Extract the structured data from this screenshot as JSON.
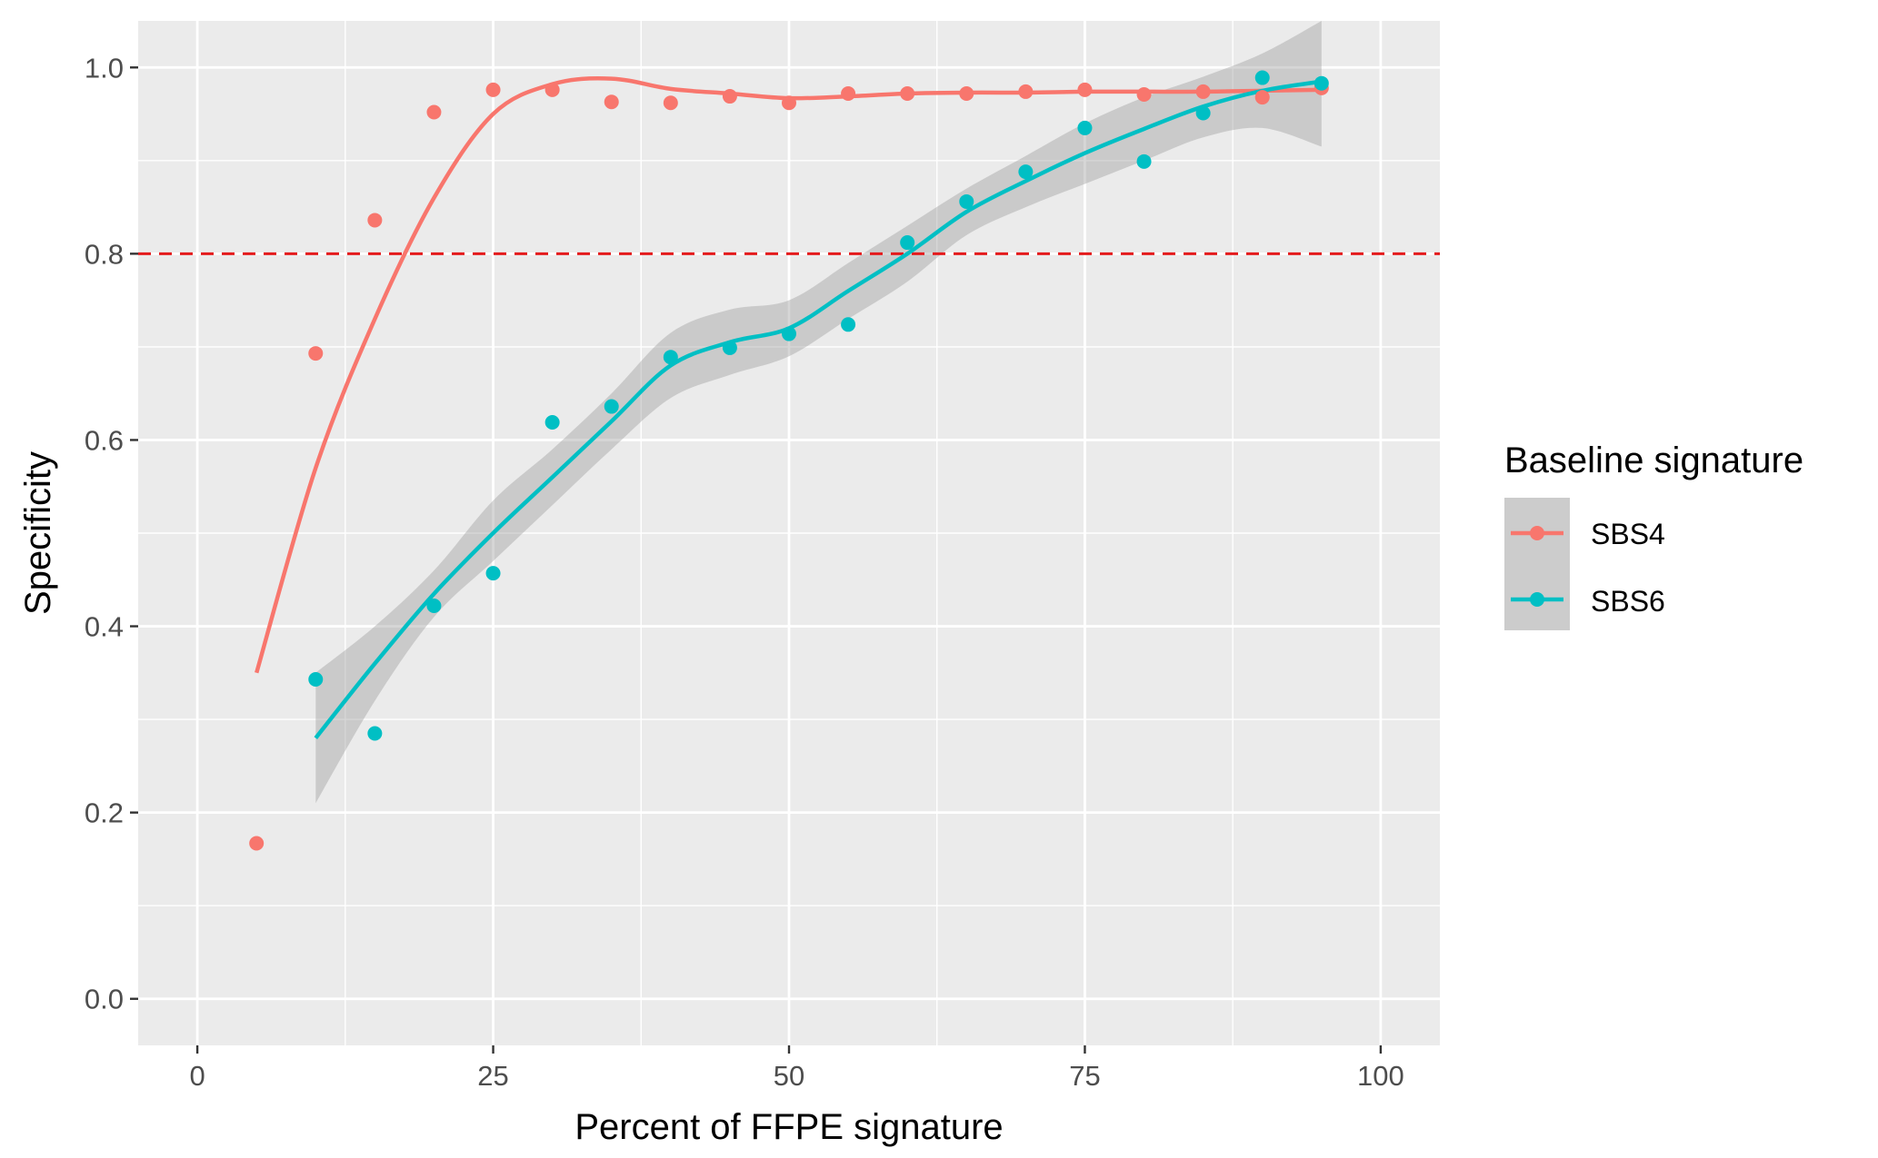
{
  "chart_data": {
    "type": "scatter",
    "xlabel": "Percent of FFPE signature",
    "ylabel": "Specificity",
    "xlim": [
      -5,
      105
    ],
    "ylim": [
      -0.05,
      1.05
    ],
    "x_ticks": [
      0,
      25,
      50,
      75,
      100
    ],
    "x_tick_labels": [
      "0",
      "25",
      "50",
      "75",
      "100"
    ],
    "y_ticks": [
      0.0,
      0.2,
      0.4,
      0.6,
      0.8,
      1.0
    ],
    "y_tick_labels": [
      "0.0",
      "0.2",
      "0.4",
      "0.6",
      "0.8",
      "1.0"
    ],
    "grid": true,
    "background": "#ebebeb",
    "reference_line": {
      "y": 0.8,
      "style": "dashed",
      "color": "#e41a1c"
    },
    "legend": {
      "title": "Baseline signature",
      "position": "right"
    },
    "series": [
      {
        "name": "SBS4",
        "color": "#f8766d",
        "points": [
          [
            5,
            0.167
          ],
          [
            10,
            0.693
          ],
          [
            15,
            0.836
          ],
          [
            20,
            0.952
          ],
          [
            25,
            0.976
          ],
          [
            30,
            0.976
          ],
          [
            35,
            0.963
          ],
          [
            40,
            0.962
          ],
          [
            45,
            0.969
          ],
          [
            50,
            0.962
          ],
          [
            55,
            0.972
          ],
          [
            60,
            0.972
          ],
          [
            65,
            0.972
          ],
          [
            70,
            0.974
          ],
          [
            75,
            0.976
          ],
          [
            80,
            0.971
          ],
          [
            85,
            0.974
          ],
          [
            90,
            0.968
          ],
          [
            95,
            0.978
          ]
        ],
        "smooth": [
          [
            5,
            0.35
          ],
          [
            10,
            0.57
          ],
          [
            15,
            0.73
          ],
          [
            20,
            0.86
          ],
          [
            25,
            0.95
          ],
          [
            30,
            0.982
          ],
          [
            35,
            0.988
          ],
          [
            40,
            0.977
          ],
          [
            45,
            0.972
          ],
          [
            50,
            0.967
          ],
          [
            55,
            0.969
          ],
          [
            60,
            0.972
          ],
          [
            65,
            0.973
          ],
          [
            70,
            0.973
          ],
          [
            75,
            0.974
          ],
          [
            80,
            0.974
          ],
          [
            85,
            0.974
          ],
          [
            90,
            0.975
          ],
          [
            95,
            0.976
          ]
        ]
      },
      {
        "name": "SBS6",
        "color": "#00bfc4",
        "points": [
          [
            10,
            0.343
          ],
          [
            15,
            0.285
          ],
          [
            20,
            0.422
          ],
          [
            25,
            0.457
          ],
          [
            30,
            0.619
          ],
          [
            35,
            0.636
          ],
          [
            40,
            0.689
          ],
          [
            45,
            0.699
          ],
          [
            50,
            0.714
          ],
          [
            55,
            0.724
          ],
          [
            60,
            0.812
          ],
          [
            65,
            0.856
          ],
          [
            70,
            0.888
          ],
          [
            75,
            0.935
          ],
          [
            80,
            0.899
          ],
          [
            85,
            0.951
          ],
          [
            90,
            0.989
          ],
          [
            95,
            0.983
          ]
        ],
        "smooth": [
          [
            10,
            0.28
          ],
          [
            15,
            0.36
          ],
          [
            20,
            0.435
          ],
          [
            25,
            0.5
          ],
          [
            30,
            0.56
          ],
          [
            35,
            0.62
          ],
          [
            40,
            0.68
          ],
          [
            45,
            0.705
          ],
          [
            50,
            0.72
          ],
          [
            55,
            0.76
          ],
          [
            60,
            0.8
          ],
          [
            65,
            0.845
          ],
          [
            70,
            0.878
          ],
          [
            75,
            0.908
          ],
          [
            80,
            0.934
          ],
          [
            85,
            0.958
          ],
          [
            90,
            0.975
          ],
          [
            95,
            0.985
          ]
        ],
        "band_lower": [
          0.21,
          0.32,
          0.41,
          0.47,
          0.53,
          0.59,
          0.645,
          0.67,
          0.69,
          0.73,
          0.77,
          0.82,
          0.85,
          0.875,
          0.9,
          0.925,
          0.935,
          0.915
        ],
        "band_upper": [
          0.35,
          0.4,
          0.46,
          0.535,
          0.59,
          0.65,
          0.715,
          0.74,
          0.75,
          0.79,
          0.83,
          0.87,
          0.905,
          0.94,
          0.968,
          0.99,
          1.015,
          1.05
        ]
      }
    ]
  }
}
